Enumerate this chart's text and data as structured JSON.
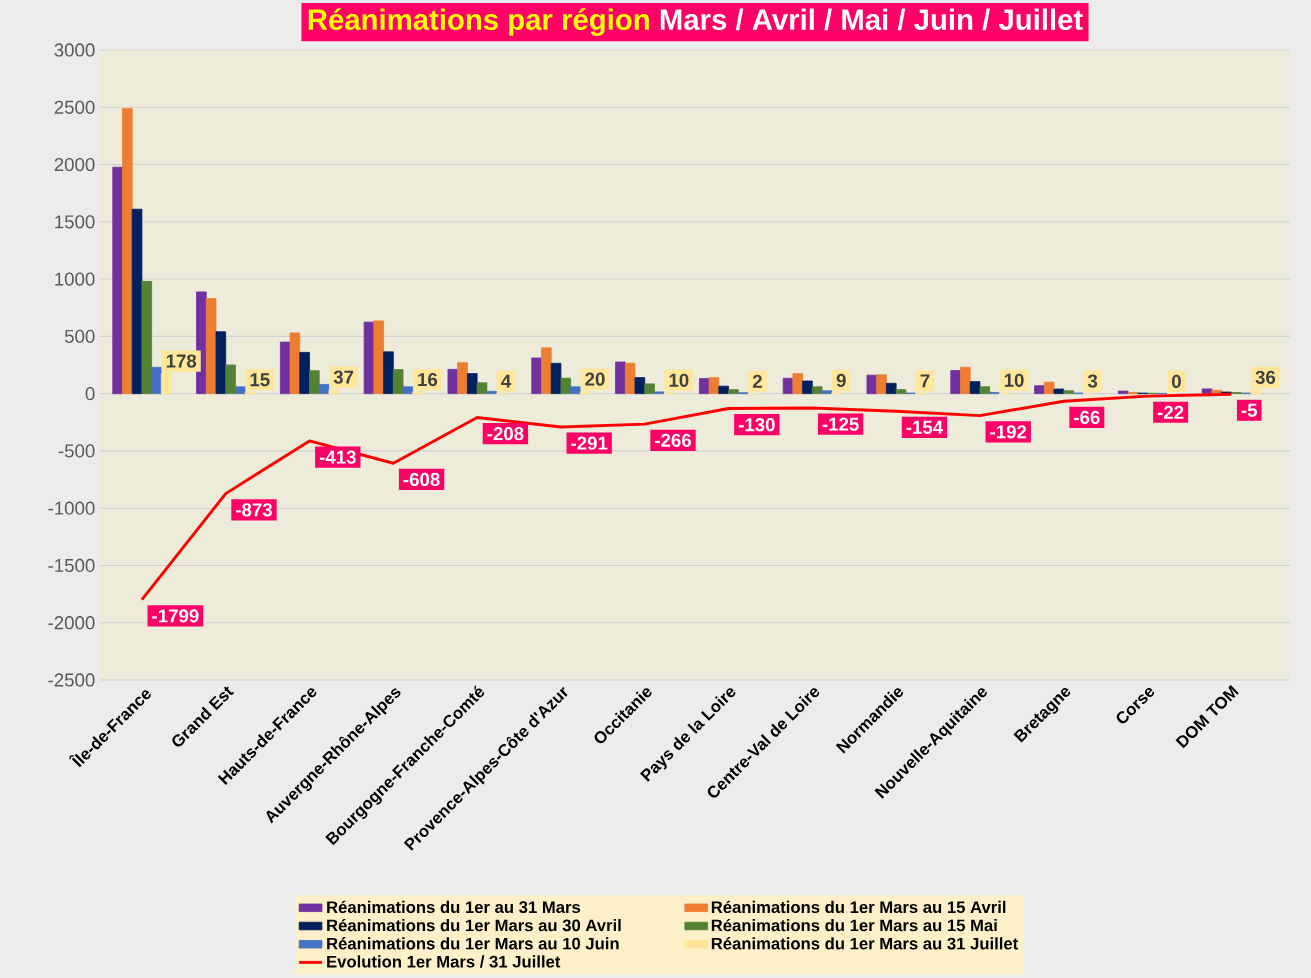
{
  "chart_data": {
    "type": "bar",
    "title": "Réanimations par région",
    "subtitle": "Mars / Avril / Mai / Juin / Juillet",
    "categories": [
      "Île-de-France",
      "Grand Est",
      "Hauts-de-France",
      "Auvergne-Rhône-Alpes",
      "Bourgogne-Franche-Comté",
      "Provence-Alpes-Côte d'Azur",
      "Occitanie",
      "Pays de la Loire",
      "Centre-Val de Loire",
      "Normandie",
      "Nouvelle-Aquitaine",
      "Bretagne",
      "Corse",
      "DOM TOM"
    ],
    "series": [
      {
        "name": "Réanimations du 1er au 31 Mars",
        "color": "#7030a0",
        "values": [
          1977,
          888,
          450,
          624,
          212,
          311,
          276,
          132,
          134,
          161,
          202,
          69,
          22,
          41
        ]
      },
      {
        "name": "Réanimations du 1er Mars au 15 Avril",
        "color": "#ed7d31",
        "values": [
          2490,
          830,
          530,
          635,
          270,
          400,
          265,
          140,
          175,
          165,
          230,
          100,
          10,
          30
        ]
      },
      {
        "name": "Réanimations du 1er Mars au 30 Avril",
        "color": "#002060",
        "values": [
          1610,
          540,
          360,
          365,
          175,
          265,
          140,
          65,
          110,
          90,
          105,
          40,
          5,
          14
        ]
      },
      {
        "name": "Réanimations du 1er Mars au 15 Mai",
        "color": "#548235",
        "values": [
          980,
          250,
          200,
          210,
          95,
          135,
          85,
          35,
          60,
          35,
          60,
          25,
          3,
          10
        ]
      },
      {
        "name": "Réanimations du 1er Mars au 10 Juin",
        "color": "#4472c4",
        "values": [
          230,
          60,
          80,
          60,
          20,
          60,
          15,
          8,
          25,
          5,
          10,
          5,
          2,
          5
        ]
      },
      {
        "name": "Réanimations du 1er Mars au 31 Juillet",
        "color": "#ffe699",
        "values": [
          178,
          15,
          37,
          16,
          4,
          20,
          10,
          2,
          9,
          7,
          10,
          3,
          0,
          36
        ],
        "value_labels": [
          "178",
          "15",
          "37",
          "16",
          "4",
          "20",
          "10",
          "2",
          "9",
          "7",
          "10",
          "3",
          "0",
          "36"
        ]
      },
      {
        "name": "Evolution 1er Mars / 31 Juillet",
        "type": "line",
        "color": "#ff0000",
        "values": [
          -1799,
          -873,
          -413,
          -608,
          -208,
          -291,
          -266,
          -130,
          -125,
          -154,
          -192,
          -66,
          -22,
          -5
        ],
        "value_labels": [
          "-1799",
          "-873",
          "-413",
          "-608",
          "-208",
          "-291",
          "-266",
          "-130",
          "-125",
          "-154",
          "-192",
          "-66",
          "-22",
          "-5"
        ]
      }
    ],
    "ylim": [
      -2500,
      3000
    ],
    "yticks": [
      -2500,
      -2000,
      -1500,
      -1000,
      -500,
      0,
      500,
      1000,
      1500,
      2000,
      2500,
      3000
    ],
    "grid": "y",
    "legend": "bottom"
  }
}
